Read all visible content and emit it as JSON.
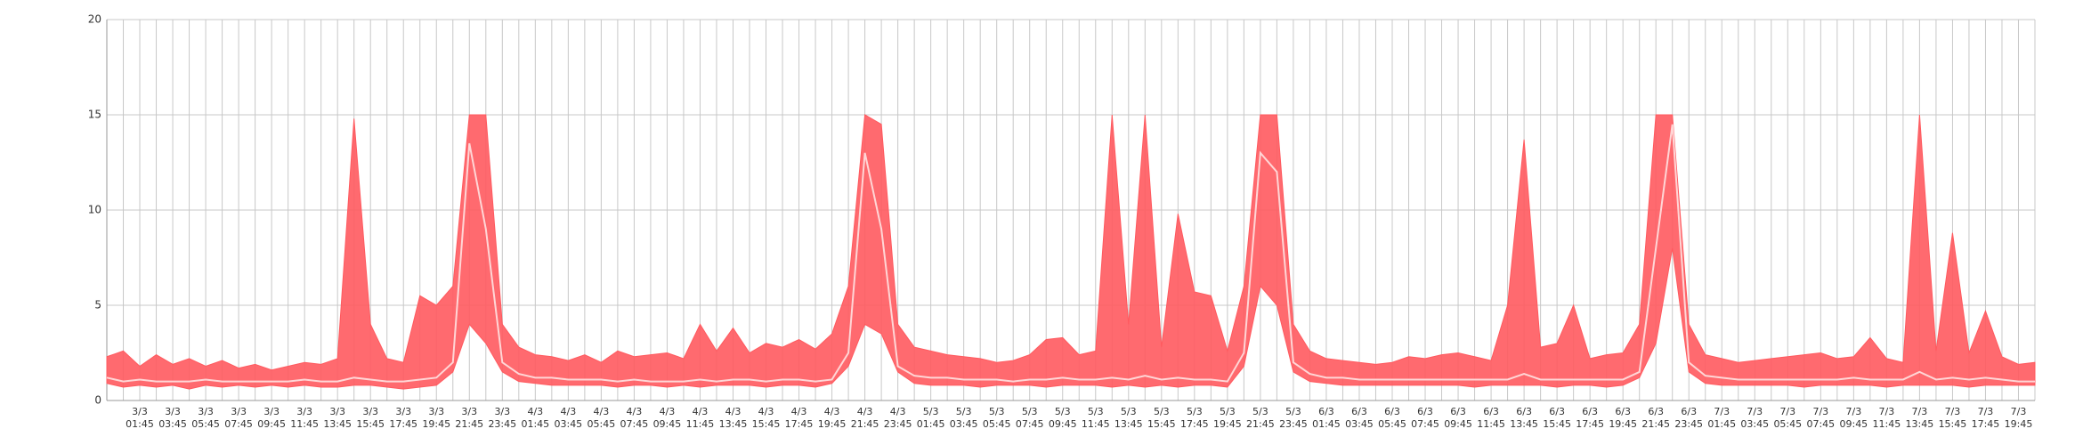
{
  "chart_data": {
    "type": "band",
    "categories": [
      null,
      null,
      "3/3\n01:45",
      null,
      "3/3\n03:45",
      null,
      "3/3\n05:45",
      null,
      "3/3\n07:45",
      null,
      "3/3\n09:45",
      null,
      "3/3\n11:45",
      null,
      "3/3\n13:45",
      null,
      "3/3\n15:45",
      null,
      "3/3\n17:45",
      null,
      "3/3\n19:45",
      null,
      "3/3\n21:45",
      null,
      "3/3\n23:45",
      null,
      "4/3\n01:45",
      null,
      "4/3\n03:45",
      null,
      "4/3\n05:45",
      null,
      "4/3\n07:45",
      null,
      "4/3\n09:45",
      null,
      "4/3\n11:45",
      null,
      "4/3\n13:45",
      null,
      "4/3\n15:45",
      null,
      "4/3\n17:45",
      null,
      "4/3\n19:45",
      null,
      "4/3\n21:45",
      null,
      "4/3\n23:45",
      null,
      "5/3\n01:45",
      null,
      "5/3\n03:45",
      null,
      "5/3\n05:45",
      null,
      "5/3\n07:45",
      null,
      "5/3\n09:45",
      null,
      "5/3\n11:45",
      null,
      "5/3\n13:45",
      null,
      "5/3\n15:45",
      null,
      "5/3\n17:45",
      null,
      "5/3\n19:45",
      null,
      "5/3\n21:45",
      null,
      "5/3\n23:45",
      null,
      "6/3\n01:45",
      null,
      "6/3\n03:45",
      null,
      "6/3\n05:45",
      null,
      "6/3\n07:45",
      null,
      "6/3\n09:45",
      null,
      "6/3\n11:45",
      null,
      "6/3\n13:45",
      null,
      "6/3\n15:45",
      null,
      "6/3\n17:45",
      null,
      "6/3\n19:45",
      null,
      "6/3\n21:45",
      null,
      "6/3\n23:45",
      null,
      "7/3\n01:45",
      null,
      "7/3\n03:45",
      null,
      "7/3\n05:45",
      null,
      "7/3\n07:45",
      null,
      "7/3\n09:45",
      null,
      "7/3\n11:45",
      null,
      "7/3\n13:45",
      null,
      "7/3\n15:45",
      null,
      "7/3\n17:45",
      null,
      "7/3\n19:45",
      null
    ],
    "high": [
      2.3,
      2.6,
      1.8,
      2.4,
      1.9,
      2.2,
      1.8,
      2.1,
      1.7,
      1.9,
      1.6,
      1.8,
      2.0,
      1.9,
      2.2,
      14.8,
      4.0,
      2.2,
      2.0,
      5.5,
      5.0,
      6.0,
      15,
      15,
      4.0,
      2.8,
      2.4,
      2.3,
      2.1,
      2.4,
      2.0,
      2.6,
      2.3,
      2.4,
      2.5,
      2.2,
      4.0,
      2.6,
      3.8,
      2.5,
      3.0,
      2.8,
      3.2,
      2.7,
      3.5,
      6.0,
      15,
      14.5,
      4.0,
      2.8,
      2.6,
      2.4,
      2.3,
      2.2,
      2.0,
      2.1,
      2.4,
      3.2,
      3.3,
      2.4,
      2.6,
      15,
      4.0,
      15,
      2.8,
      9.8,
      5.7,
      5.5,
      2.6,
      6.0,
      15,
      15,
      4.0,
      2.6,
      2.2,
      2.1,
      2.0,
      1.9,
      2.0,
      2.3,
      2.2,
      2.4,
      2.5,
      2.3,
      2.1,
      5.0,
      13.7,
      2.8,
      3.0,
      5.0,
      2.2,
      2.4,
      2.5,
      4.0,
      15,
      15,
      4.0,
      2.4,
      2.2,
      2.0,
      2.1,
      2.2,
      2.3,
      2.4,
      2.5,
      2.2,
      2.3,
      3.3,
      2.2,
      2.0,
      15,
      2.6,
      8.8,
      2.5,
      4.7,
      2.3,
      1.9,
      2.0
    ],
    "low": [
      0.9,
      0.7,
      0.8,
      0.7,
      0.8,
      0.6,
      0.8,
      0.7,
      0.8,
      0.7,
      0.8,
      0.7,
      0.8,
      0.7,
      0.7,
      0.8,
      0.8,
      0.7,
      0.6,
      0.7,
      0.8,
      1.5,
      4.0,
      3.0,
      1.5,
      1.0,
      0.9,
      0.8,
      0.8,
      0.8,
      0.8,
      0.7,
      0.8,
      0.8,
      0.7,
      0.8,
      0.7,
      0.8,
      0.8,
      0.8,
      0.7,
      0.8,
      0.8,
      0.7,
      0.9,
      1.8,
      4.0,
      3.5,
      1.5,
      0.9,
      0.8,
      0.8,
      0.8,
      0.7,
      0.8,
      0.8,
      0.8,
      0.7,
      0.8,
      0.8,
      0.8,
      0.7,
      0.8,
      0.7,
      0.8,
      0.7,
      0.8,
      0.8,
      0.7,
      1.8,
      6.0,
      5.0,
      1.5,
      1.0,
      0.9,
      0.8,
      0.8,
      0.8,
      0.8,
      0.8,
      0.8,
      0.8,
      0.8,
      0.7,
      0.8,
      0.8,
      0.8,
      0.8,
      0.7,
      0.8,
      0.8,
      0.7,
      0.8,
      1.2,
      3.0,
      8.0,
      1.5,
      0.9,
      0.8,
      0.8,
      0.8,
      0.8,
      0.8,
      0.7,
      0.8,
      0.8,
      0.8,
      0.8,
      0.7,
      0.8,
      0.8,
      0.8,
      0.8,
      0.7,
      0.8,
      0.8,
      0.8,
      0.8
    ],
    "median": [
      1.2,
      1.0,
      1.1,
      1.0,
      1.0,
      1.0,
      1.1,
      1.0,
      1.0,
      1.0,
      1.0,
      1.0,
      1.1,
      1.0,
      1.0,
      1.2,
      1.1,
      1.0,
      1.0,
      1.1,
      1.2,
      2.0,
      13.5,
      9.0,
      2.0,
      1.4,
      1.2,
      1.2,
      1.1,
      1.1,
      1.1,
      1.0,
      1.1,
      1.0,
      1.0,
      1.0,
      1.1,
      1.0,
      1.1,
      1.1,
      1.0,
      1.1,
      1.1,
      1.0,
      1.1,
      2.5,
      13.0,
      9.0,
      1.8,
      1.3,
      1.2,
      1.2,
      1.1,
      1.1,
      1.1,
      1.0,
      1.1,
      1.1,
      1.2,
      1.1,
      1.1,
      1.2,
      1.1,
      1.3,
      1.1,
      1.2,
      1.1,
      1.1,
      1.0,
      2.5,
      13.0,
      12.0,
      2.0,
      1.4,
      1.2,
      1.2,
      1.1,
      1.1,
      1.1,
      1.1,
      1.1,
      1.1,
      1.1,
      1.1,
      1.1,
      1.1,
      1.4,
      1.1,
      1.1,
      1.1,
      1.1,
      1.1,
      1.1,
      1.5,
      8.0,
      14.5,
      2.0,
      1.3,
      1.2,
      1.1,
      1.1,
      1.1,
      1.1,
      1.1,
      1.1,
      1.1,
      1.2,
      1.1,
      1.1,
      1.1,
      1.5,
      1.1,
      1.2,
      1.1,
      1.2,
      1.1,
      1.0,
      1.0
    ],
    "band_color": "#ff5a5f",
    "line_color": "#ffd6d6",
    "ylim": [
      0,
      20
    ],
    "yticks": [
      0,
      5,
      10,
      15,
      20
    ],
    "grid": true
  }
}
